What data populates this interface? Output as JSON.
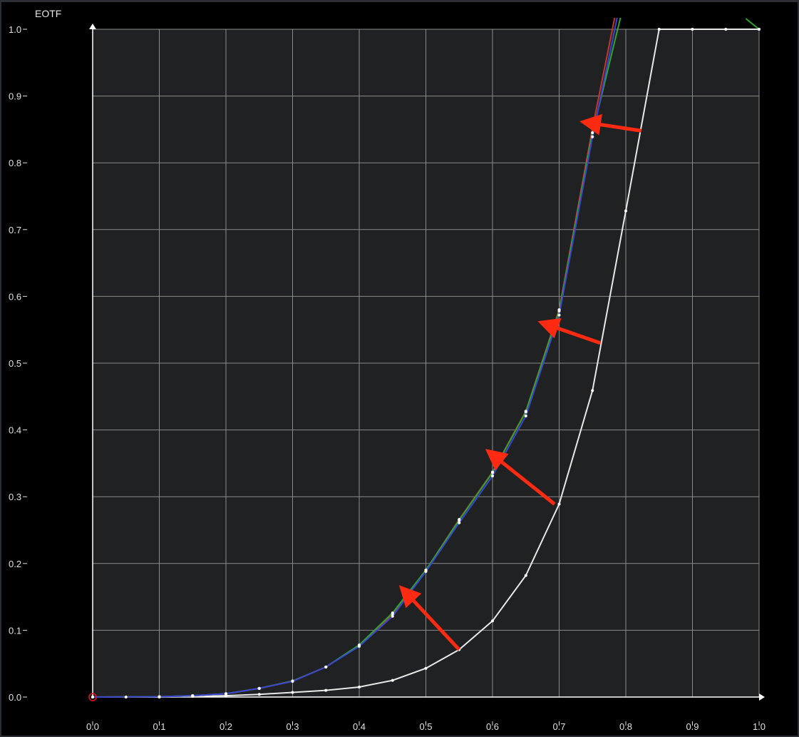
{
  "chart_data": {
    "type": "line",
    "ylabel": "EOTF",
    "xlabel": "",
    "xlim": [
      0,
      1
    ],
    "ylim": [
      0,
      1
    ],
    "grid": true,
    "x_ticks": [
      "0.0",
      "0.1",
      "0.2",
      "0.3",
      "0.4",
      "0.5",
      "0.6",
      "0.7",
      "0.8",
      "0.9",
      "1.0"
    ],
    "y_ticks": [
      "0.0",
      "0.1",
      "0.2",
      "0.3",
      "0.4",
      "0.5",
      "0.6",
      "0.7",
      "0.8",
      "0.9",
      "1.0"
    ],
    "colors": {
      "background": "#000000",
      "plot_bg": "#202122",
      "grid": "#8a8a8a",
      "axis": "#ffffff",
      "arrow": "#ff2a12",
      "origin_marker": "#e01818"
    },
    "series": [
      {
        "color": "#e8e8e8",
        "markers": true,
        "x": [
          0,
          0.05,
          0.1,
          0.15,
          0.2,
          0.25,
          0.3,
          0.35,
          0.4,
          0.45,
          0.5,
          0.55,
          0.6,
          0.65,
          0.7,
          0.75,
          0.8,
          0.85,
          0.9,
          0.95,
          1.0
        ],
        "y": [
          0,
          0,
          0,
          0.001,
          0.002,
          0.004,
          0.007,
          0.01,
          0.015,
          0.025,
          0.043,
          0.071,
          0.114,
          0.182,
          0.289,
          0.459,
          0.728,
          1.0,
          1.0,
          1.0,
          1.0
        ]
      },
      {
        "color": "#c0392b",
        "markers": true,
        "x": [
          0,
          0.1,
          0.15,
          0.2,
          0.25,
          0.3,
          0.35,
          0.4,
          0.45,
          0.5,
          0.55,
          0.6,
          0.65,
          0.7,
          0.75,
          0.8
        ],
        "y": [
          0,
          0.0005,
          0.002,
          0.005,
          0.013,
          0.024,
          0.045,
          0.077,
          0.124,
          0.19,
          0.266,
          0.337,
          0.428,
          0.58,
          0.852,
          1.1
        ]
      },
      {
        "color": "#2fa52f",
        "markers": true,
        "x": [
          0,
          0.1,
          0.15,
          0.2,
          0.25,
          0.3,
          0.35,
          0.4,
          0.45,
          0.5,
          0.55,
          0.6,
          0.65,
          0.7,
          0.75,
          0.8
        ],
        "y": [
          0,
          0.0005,
          0.002,
          0.005,
          0.013,
          0.024,
          0.045,
          0.078,
          0.126,
          0.19,
          0.265,
          0.336,
          0.427,
          0.578,
          0.845,
          1.05
        ]
      },
      {
        "color": "#3a46d0",
        "markers": true,
        "x": [
          0,
          0.1,
          0.15,
          0.2,
          0.25,
          0.3,
          0.35,
          0.4,
          0.45,
          0.5,
          0.55,
          0.6,
          0.65,
          0.7,
          0.75,
          0.8
        ],
        "y": [
          0,
          0.0005,
          0.002,
          0.005,
          0.013,
          0.0235,
          0.045,
          0.076,
          0.121,
          0.188,
          0.261,
          0.331,
          0.421,
          0.572,
          0.839,
          1.08
        ]
      },
      {
        "color": "#2fa52f",
        "markers": false,
        "x": [
          0.98,
          1.0
        ],
        "y": [
          1.016,
          1.0
        ]
      }
    ],
    "annotations": [
      {
        "type": "arrow",
        "from": [
          0.55,
          0.071
        ],
        "to": [
          0.478,
          0.148
        ]
      },
      {
        "type": "arrow",
        "from": [
          0.693,
          0.289
        ],
        "to": [
          0.61,
          0.355
        ]
      },
      {
        "type": "arrow",
        "from": [
          0.762,
          0.53
        ],
        "to": [
          0.693,
          0.554
        ]
      },
      {
        "type": "arrow",
        "from": [
          0.823,
          0.848
        ],
        "to": [
          0.757,
          0.858
        ]
      }
    ]
  }
}
